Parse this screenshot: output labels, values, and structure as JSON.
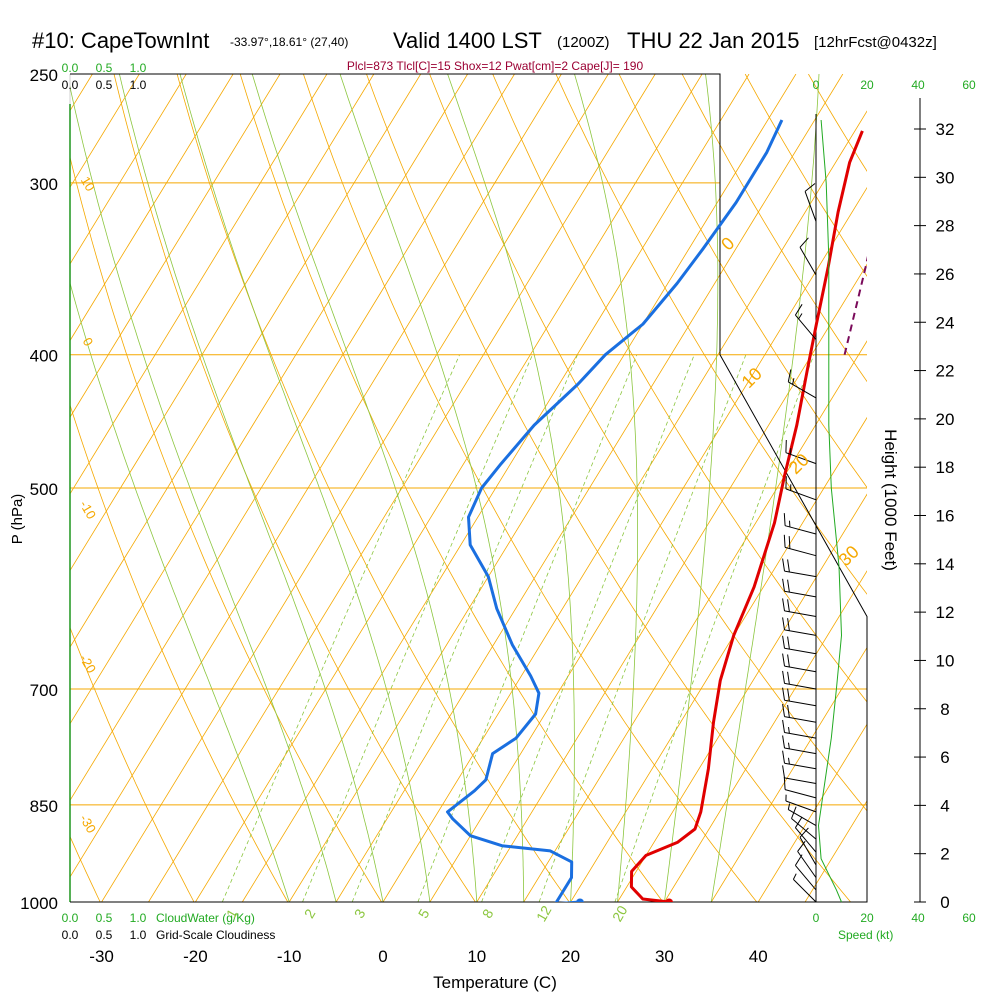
{
  "header": {
    "station": "#10: CapeTownInt",
    "coords": "-33.97°,18.61° (27,40)",
    "valid": "Valid 1400 LST",
    "utc": "(1200Z)",
    "date": "THU 22 Jan 2015",
    "forecast": "[12hrFcst@0432z]"
  },
  "indices": "Plcl=873 Tlcl[C]=15 Shox=12 Pwat[cm]=2 Cape[J]= 190",
  "colors": {
    "isobar": "#f5a800",
    "dry_adiabat": "#f5a800",
    "moist_adiabat": "#8cc63f",
    "mixing_ratio": "#8cc63f",
    "temperature": "#e00000",
    "dewpoint": "#1a6fe0",
    "parcel": "#7a0a5a",
    "wind_speed": "#22aa22",
    "green_text": "#22aa22",
    "index_text": "#9b0033"
  },
  "chart_data": {
    "type": "skew-t",
    "xlabel": "Temperature (C)",
    "ylabel": "P (hPa)",
    "right_ylabel": "Height (1000 Feet)",
    "pressure_ticks": [
      250,
      300,
      400,
      500,
      700,
      850,
      1000
    ],
    "temp_ticks": [
      "-30",
      "-20",
      "-10",
      "0",
      "10",
      "20",
      "30",
      "40"
    ],
    "height_ticks": [
      "0",
      "2",
      "4",
      "6",
      "8",
      "10",
      "12",
      "14",
      "16",
      "18",
      "20",
      "22",
      "24",
      "26",
      "28",
      "30",
      "32"
    ],
    "cloud_ticks": [
      "0.0",
      "0.5",
      "1.0"
    ],
    "speed_ticks": [
      "0",
      "20",
      "40",
      "60"
    ],
    "cloudwater_label": "CloudWater (g/Kg)",
    "cloudiness_label": "Grid-Scale Cloudiness",
    "speed_label": "Speed (kt)",
    "mixing_ratio_labels": [
      "1",
      "2",
      "3",
      "5",
      "8",
      "12",
      "20"
    ],
    "temp_line_labels": [
      "-30",
      "-20",
      "-10",
      "0",
      "10",
      "20",
      "30"
    ],
    "adiabat_labels": [
      "10",
      "0",
      "-10",
      "-20",
      "-30",
      "0",
      "10",
      "20",
      "30"
    ],
    "temperature": {
      "name": "Temperature",
      "points": [
        [
          30.5,
          1000
        ],
        [
          27.5,
          995
        ],
        [
          25.5,
          975
        ],
        [
          24.5,
          950
        ],
        [
          25,
          925
        ],
        [
          27.5,
          905
        ],
        [
          28.5,
          885
        ],
        [
          28,
          860
        ],
        [
          26,
          800
        ],
        [
          23.5,
          740
        ],
        [
          21.5,
          690
        ],
        [
          20,
          640
        ],
        [
          19,
          590
        ],
        [
          17,
          530
        ],
        [
          15,
          490
        ],
        [
          13,
          450
        ],
        [
          10.5,
          410
        ],
        [
          8.5,
          380
        ],
        [
          6,
          345
        ],
        [
          3.5,
          315
        ],
        [
          1.5,
          290
        ],
        [
          0.8,
          275
        ]
      ]
    },
    "dewpoint": {
      "name": "Dewpoint",
      "points": [
        [
          21,
          1000
        ],
        [
          18.5,
          1003
        ],
        [
          18.5,
          990
        ],
        [
          18.5,
          960
        ],
        [
          17.5,
          935
        ],
        [
          14.5,
          918
        ],
        [
          9,
          910
        ],
        [
          5,
          895
        ],
        [
          2,
          870
        ],
        [
          1,
          860
        ],
        [
          2.5,
          830
        ],
        [
          3,
          815
        ],
        [
          2,
          780
        ],
        [
          3.5,
          760
        ],
        [
          4,
          730
        ],
        [
          3,
          705
        ],
        [
          1,
          685
        ],
        [
          -3,
          650
        ],
        [
          -7,
          612
        ],
        [
          -10,
          580
        ],
        [
          -14,
          550
        ],
        [
          -16,
          525
        ],
        [
          -16.5,
          500
        ],
        [
          -16,
          480
        ],
        [
          -15,
          450
        ],
        [
          -13,
          420
        ],
        [
          -12,
          400
        ],
        [
          -10,
          380
        ],
        [
          -9,
          355
        ],
        [
          -8.5,
          335
        ],
        [
          -8,
          310
        ],
        [
          -8,
          285
        ],
        [
          -8.5,
          270
        ]
      ]
    },
    "parcel": {
      "name": "Parcel",
      "points": [
        [
          13.5,
          400
        ],
        [
          10,
          345
        ],
        [
          6,
          295
        ],
        [
          4,
          270
        ]
      ]
    },
    "wind_speed": {
      "name": "Wind speed",
      "points": [
        [
          2,
          270
        ],
        [
          4,
          300
        ],
        [
          5,
          340
        ],
        [
          5,
          400
        ],
        [
          5,
          450
        ],
        [
          6,
          500
        ],
        [
          9,
          570
        ],
        [
          10,
          640
        ],
        [
          8,
          700
        ],
        [
          6,
          760
        ],
        [
          3,
          830
        ],
        [
          1,
          880
        ],
        [
          2,
          930
        ],
        [
          8,
          980
        ],
        [
          10,
          1000
        ]
      ]
    },
    "wind_barbs": [
      {
        "p": 1000,
        "dir": 315,
        "spd": 8
      },
      {
        "p": 980,
        "dir": 320,
        "spd": 10
      },
      {
        "p": 960,
        "dir": 325,
        "spd": 12
      },
      {
        "p": 940,
        "dir": 330,
        "spd": 12
      },
      {
        "p": 920,
        "dir": 320,
        "spd": 12
      },
      {
        "p": 900,
        "dir": 310,
        "spd": 10
      },
      {
        "p": 880,
        "dir": 300,
        "spd": 8
      },
      {
        "p": 860,
        "dir": 290,
        "spd": 8
      },
      {
        "p": 840,
        "dir": 285,
        "spd": 10
      },
      {
        "p": 820,
        "dir": 280,
        "spd": 12
      },
      {
        "p": 800,
        "dir": 280,
        "spd": 15
      },
      {
        "p": 780,
        "dir": 280,
        "spd": 15
      },
      {
        "p": 760,
        "dir": 280,
        "spd": 15
      },
      {
        "p": 740,
        "dir": 280,
        "spd": 20
      },
      {
        "p": 720,
        "dir": 280,
        "spd": 20
      },
      {
        "p": 700,
        "dir": 280,
        "spd": 20
      },
      {
        "p": 680,
        "dir": 280,
        "spd": 20
      },
      {
        "p": 660,
        "dir": 280,
        "spd": 20
      },
      {
        "p": 640,
        "dir": 280,
        "spd": 20
      },
      {
        "p": 620,
        "dir": 280,
        "spd": 20
      },
      {
        "p": 600,
        "dir": 280,
        "spd": 20
      },
      {
        "p": 580,
        "dir": 280,
        "spd": 20
      },
      {
        "p": 560,
        "dir": 285,
        "spd": 20
      },
      {
        "p": 540,
        "dir": 285,
        "spd": 15
      },
      {
        "p": 510,
        "dir": 290,
        "spd": 15
      },
      {
        "p": 480,
        "dir": 290,
        "spd": 15
      },
      {
        "p": 430,
        "dir": 300,
        "spd": 15
      },
      {
        "p": 390,
        "dir": 320,
        "spd": 15
      },
      {
        "p": 350,
        "dir": 330,
        "spd": 10
      },
      {
        "p": 320,
        "dir": 340,
        "spd": 10
      }
    ]
  }
}
